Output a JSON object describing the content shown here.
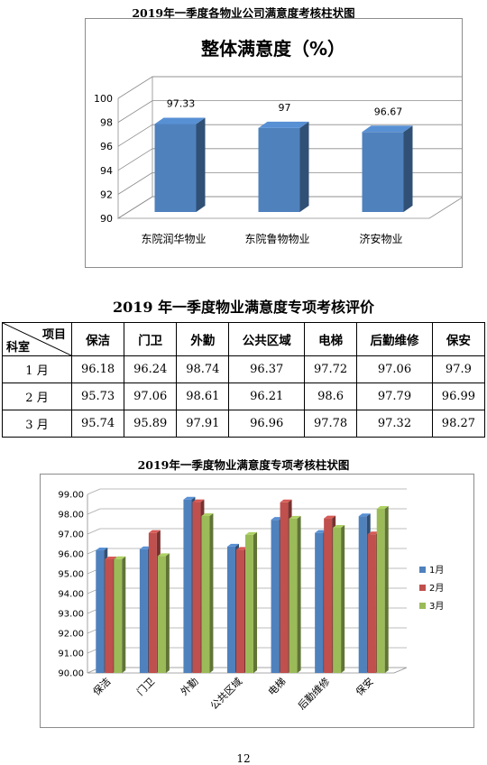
{
  "caption1": "2019年一季度各物业公司满意度考核柱状图",
  "chart1_title": "整体满意度（%）",
  "table_title": "2019 年一季度物业满意度专项考核评价",
  "table": {
    "corner_top": "项目",
    "corner_bottom": "科室",
    "columns": [
      "保洁",
      "门卫",
      "外勤",
      "公共区域",
      "电梯",
      "后勤维修",
      "保安"
    ],
    "rows": [
      {
        "label": "1 月",
        "cells": [
          "96.18",
          "96.24",
          "98.74",
          "96.37",
          "97.72",
          "97.06",
          "97.9"
        ]
      },
      {
        "label": "2 月",
        "cells": [
          "95.73",
          "97.06",
          "98.61",
          "96.21",
          "98.6",
          "97.79",
          "96.99"
        ]
      },
      {
        "label": "3 月",
        "cells": [
          "95.74",
          "95.89",
          "97.91",
          "96.96",
          "97.78",
          "97.32",
          "98.27"
        ]
      }
    ]
  },
  "caption2": "2019年一季度物业满意度专项考核柱状图",
  "page_number": "12",
  "chart_data": [
    {
      "type": "bar",
      "title": "整体满意度（%）",
      "categories": [
        "东院润华物业",
        "东院鲁物物业",
        "济安物业"
      ],
      "values": [
        97.33,
        97,
        96.67
      ],
      "value_labels": [
        "97.33",
        "97",
        "96.67"
      ],
      "ylim": [
        90,
        100
      ],
      "yticks": [
        "90",
        "92",
        "94",
        "96",
        "98",
        "100"
      ],
      "color": "#4f81bd",
      "grid": true,
      "legend": "none"
    },
    {
      "type": "bar",
      "categories": [
        "保洁",
        "门卫",
        "外勤",
        "公共区域",
        "电梯",
        "后勤维修",
        "保安"
      ],
      "series": [
        {
          "name": "1月",
          "color": "#4f81bd",
          "values": [
            96.18,
            96.24,
            98.74,
            96.37,
            97.72,
            97.06,
            97.9
          ]
        },
        {
          "name": "2月",
          "color": "#c0504d",
          "values": [
            95.73,
            97.06,
            98.61,
            96.21,
            98.6,
            97.79,
            96.99
          ]
        },
        {
          "name": "3月",
          "color": "#9bbb59",
          "values": [
            95.74,
            95.89,
            97.91,
            96.96,
            97.78,
            97.32,
            98.27
          ]
        }
      ],
      "ylim": [
        90,
        99
      ],
      "yticks": [
        "90.00",
        "91.00",
        "92.00",
        "93.00",
        "94.00",
        "95.00",
        "96.00",
        "97.00",
        "98.00",
        "99.00"
      ],
      "grid": true,
      "legend": "right"
    }
  ]
}
